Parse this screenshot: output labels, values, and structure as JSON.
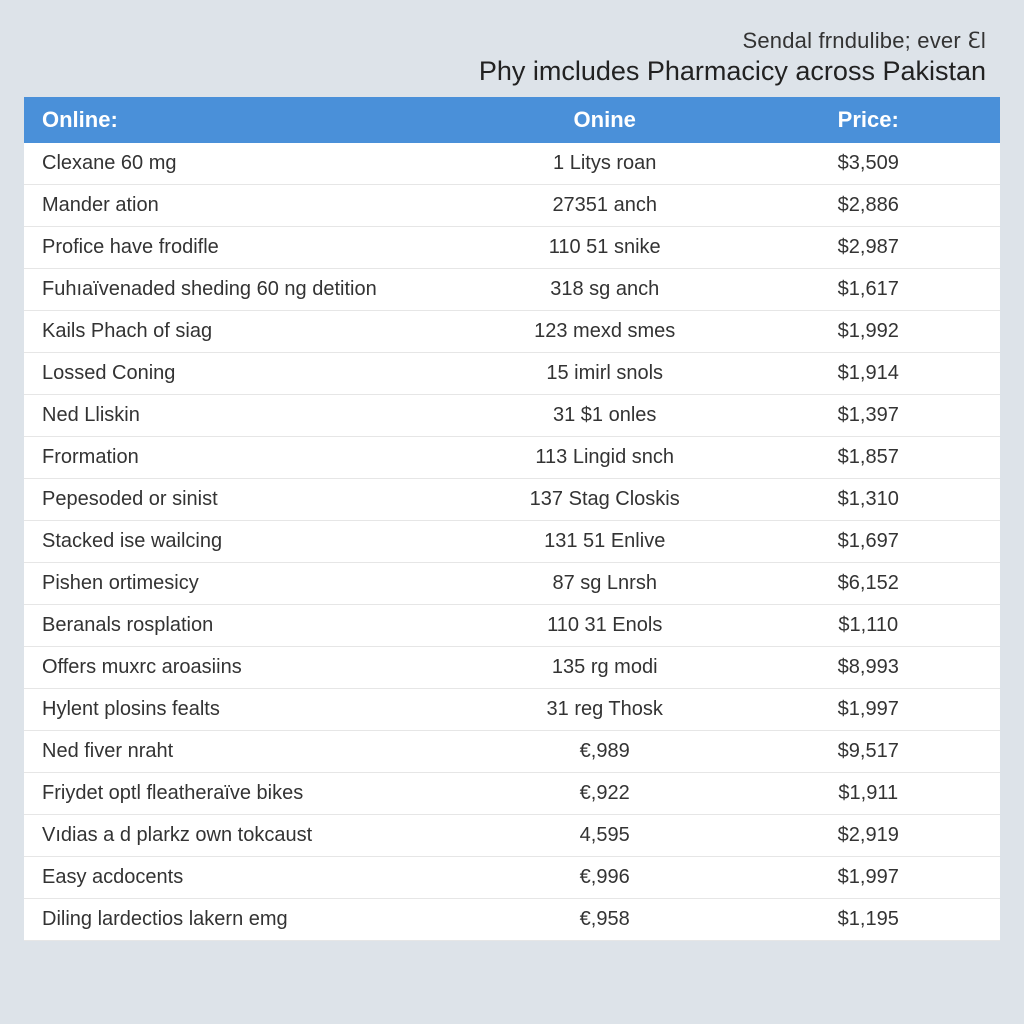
{
  "header": {
    "small_title": "Sendal frndulibe; ever ℇl",
    "main_title": "Phy imcludes Pharmacicy across Pakistan"
  },
  "table": {
    "type": "table",
    "header_bg": "#4a90d9",
    "header_fg": "#ffffff",
    "row_border": "#e6e6e6",
    "background": "#ffffff",
    "page_bg": "#dde3e9",
    "font_family": "Segoe UI",
    "header_fontsize": 22,
    "cell_fontsize": 20,
    "col_widths_pct": [
      46,
      27,
      27
    ],
    "columns": [
      "Online:",
      "Onine",
      "Price:"
    ],
    "rows": [
      [
        "Clexane 60 mg",
        "1 Litys roan",
        "$3,509"
      ],
      [
        "Mander ation",
        "27351 anch",
        "$2,886"
      ],
      [
        "Profice have frodifle",
        "110 51 snike",
        "$2,987"
      ],
      [
        "Fuhıaïvenaded sheding 60 ng detition",
        "318 sg anch",
        "$1,617"
      ],
      [
        "Kails Phach of siag",
        "123 mexd smes",
        "$1,992"
      ],
      [
        "Lossed Coning",
        "15 imirl snols",
        "$1,914"
      ],
      [
        "Ned Lliskin",
        "31 $1 onles",
        "$1,397"
      ],
      [
        "Frormation",
        "113 Lingid snch",
        "$1,857"
      ],
      [
        "Pepesoded or sinist",
        "137 Stag Closkis",
        "$1,310"
      ],
      [
        "Stacked ise wailcing",
        "131 51 Enlive",
        "$1,697"
      ],
      [
        "Pishen ortimesicy",
        "87 sg Lnrsh",
        "$6,152"
      ],
      [
        "Beranals rosplation",
        "110 31 Enols",
        "$1,110"
      ],
      [
        "Offers muxrc aroasiins",
        "135 rg modi",
        "$8,993"
      ],
      [
        "Hylent plosins fealts",
        "31 reg Thosk",
        "$1,997"
      ],
      [
        "Ned fiver nraht",
        "€,989",
        "$9,517"
      ],
      [
        "Friydet optl fleatheraïve bikes",
        "€,922",
        "$1,911"
      ],
      [
        "Vıdias a d plarkz own tokcaust",
        "4,595",
        "$2,919"
      ],
      [
        "Easy acdocents",
        "€,996",
        "$1,997"
      ],
      [
        "Diling lardectios lakern emg",
        "€,958",
        "$1,195"
      ]
    ]
  }
}
